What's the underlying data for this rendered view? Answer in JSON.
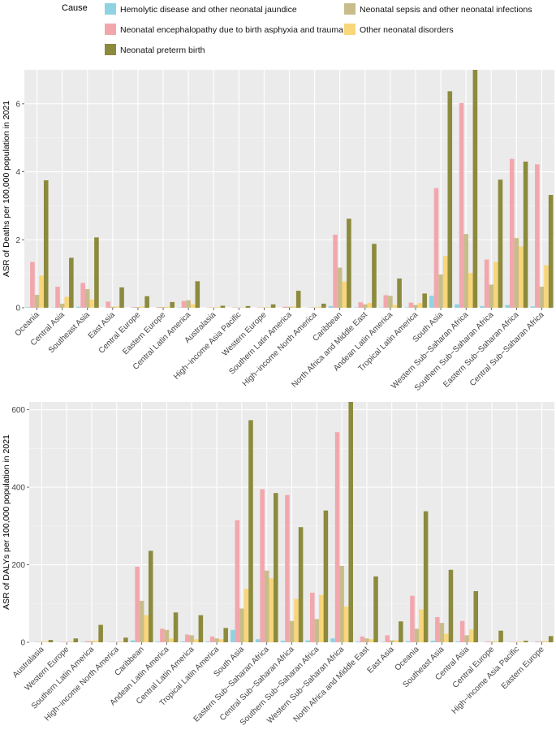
{
  "legend": {
    "title": "Cause",
    "items": [
      {
        "key": "hem",
        "label": "Hemolytic disease and other neonatal jaundice",
        "color": "#8fd3e3"
      },
      {
        "key": "sep",
        "label": "Neonatal sepsis and other neonatal infections",
        "color": "#c8bd8a"
      },
      {
        "key": "enc",
        "label": "Neonatal encephalopathy due to birth asphyxia and trauma",
        "color": "#f2a7ad"
      },
      {
        "key": "oth",
        "label": "Other neonatal disorders",
        "color": "#f8d679"
      },
      {
        "key": "pre",
        "label": "Neonatal preterm birth",
        "color": "#8c8a3d"
      }
    ]
  },
  "chart_data": [
    {
      "type": "bar",
      "ylabel": "ASR of Deaths per 100,000 population in 2021",
      "ylim": [
        0,
        7
      ],
      "yticks": [
        0,
        2,
        4,
        6
      ],
      "grid": true,
      "categories": [
        "Oceania",
        "Central Asia",
        "Southeast Asia",
        "East Asia",
        "Central Europe",
        "Eastern Europe",
        "Central Latin America",
        "Australasia",
        "High−income Asia Pacific",
        "Western Europe",
        "Southern Latin America",
        "High−income North America",
        "Caribbean",
        "North Africa and Middle East",
        "Andean Latin America",
        "Tropical Latin America",
        "South Asia",
        "Western Sub−Saharan Africa",
        "Southern Sub−Saharan Africa",
        "Eastern Sub−Saharan Africa",
        "Central Sub−Saharan Africa"
      ],
      "series": [
        {
          "name": "Hemolytic disease and other neonatal jaundice",
          "key": "hem",
          "values": [
            0.02,
            0.01,
            0.03,
            0.0,
            0.0,
            0.0,
            0.01,
            0.0,
            0.0,
            0.0,
            0.0,
            0.0,
            0.05,
            0.01,
            0.01,
            0.01,
            0.35,
            0.1,
            0.05,
            0.08,
            0.04
          ]
        },
        {
          "name": "Neonatal encephalopathy due to birth asphyxia and trauma",
          "key": "enc",
          "values": [
            1.35,
            0.62,
            0.73,
            0.18,
            0.02,
            0.02,
            0.2,
            0.01,
            0.01,
            0.01,
            0.03,
            0.01,
            2.15,
            0.16,
            0.37,
            0.15,
            3.52,
            6.02,
            1.42,
            4.38,
            4.22
          ]
        },
        {
          "name": "Neonatal sepsis and other neonatal infections",
          "key": "sep",
          "values": [
            0.38,
            0.12,
            0.55,
            0.03,
            0.02,
            0.02,
            0.22,
            0.01,
            0.01,
            0.01,
            0.03,
            0.01,
            1.18,
            0.1,
            0.35,
            0.08,
            0.98,
            2.17,
            0.68,
            2.05,
            0.62
          ]
        },
        {
          "name": "Other neonatal disorders",
          "key": "oth",
          "values": [
            0.95,
            0.32,
            0.24,
            0.04,
            0.04,
            0.03,
            0.1,
            0.02,
            0.01,
            0.02,
            0.04,
            0.03,
            0.77,
            0.14,
            0.08,
            0.14,
            1.52,
            1.02,
            1.35,
            1.8,
            1.25
          ]
        },
        {
          "name": "Neonatal preterm birth",
          "key": "pre",
          "values": [
            3.75,
            1.47,
            2.07,
            0.6,
            0.34,
            0.17,
            0.78,
            0.06,
            0.05,
            0.1,
            0.5,
            0.12,
            2.62,
            1.88,
            0.86,
            0.42,
            6.37,
            7.0,
            3.77,
            4.3,
            3.32
          ]
        }
      ]
    },
    {
      "type": "bar",
      "ylabel": "ASR of DALYs per 100,000 population in 2021",
      "ylim": [
        0,
        620
      ],
      "yticks": [
        0,
        200,
        400,
        600
      ],
      "grid": true,
      "categories": [
        "Australasia",
        "Western Europe",
        "Southern Latin America",
        "High−income North America",
        "Caribbean",
        "Andean Latin America",
        "Central Latin America",
        "Tropical Latin America",
        "South Asia",
        "Eastern Sub−Saharan Africa",
        "Central Sub−Saharan Africa",
        "Southern Sub−Saharan Africa",
        "Western Sub−Saharan Africa",
        "North Africa and Middle East",
        "East Asia",
        "Oceania",
        "Southeast Asia",
        "Central Asia",
        "Central Europe",
        "High−income Asia Pacific",
        "Eastern Europe"
      ],
      "series": [
        {
          "name": "Hemolytic disease and other neonatal jaundice",
          "key": "hem",
          "values": [
            0.5,
            0.5,
            1,
            0.5,
            5,
            2,
            2,
            2,
            32,
            8,
            4,
            5,
            10,
            2,
            1,
            3,
            4,
            2,
            0.5,
            0.5,
            0.5
          ]
        },
        {
          "name": "Neonatal encephalopathy due to birth asphyxia and trauma",
          "key": "enc",
          "values": [
            1,
            1,
            3,
            1,
            195,
            35,
            20,
            15,
            315,
            395,
            380,
            128,
            542,
            15,
            18,
            120,
            65,
            55,
            2,
            1,
            2
          ]
        },
        {
          "name": "Neonatal sepsis and other neonatal infections",
          "key": "sep",
          "values": [
            1,
            1,
            3,
            1,
            107,
            32,
            18,
            10,
            87,
            185,
            55,
            60,
            197,
            10,
            5,
            35,
            50,
            18,
            2,
            1,
            2
          ]
        },
        {
          "name": "Other neonatal disorders",
          "key": "oth",
          "values": [
            2,
            2,
            4,
            2,
            70,
            10,
            8,
            8,
            138,
            165,
            112,
            122,
            92,
            8,
            5,
            85,
            22,
            33,
            3,
            2,
            3
          ]
        },
        {
          "name": "Neonatal preterm birth",
          "key": "pre",
          "values": [
            6,
            10,
            45,
            12,
            236,
            77,
            70,
            37,
            573,
            385,
            297,
            340,
            620,
            170,
            54,
            338,
            187,
            132,
            30,
            4,
            16
          ]
        }
      ]
    }
  ]
}
